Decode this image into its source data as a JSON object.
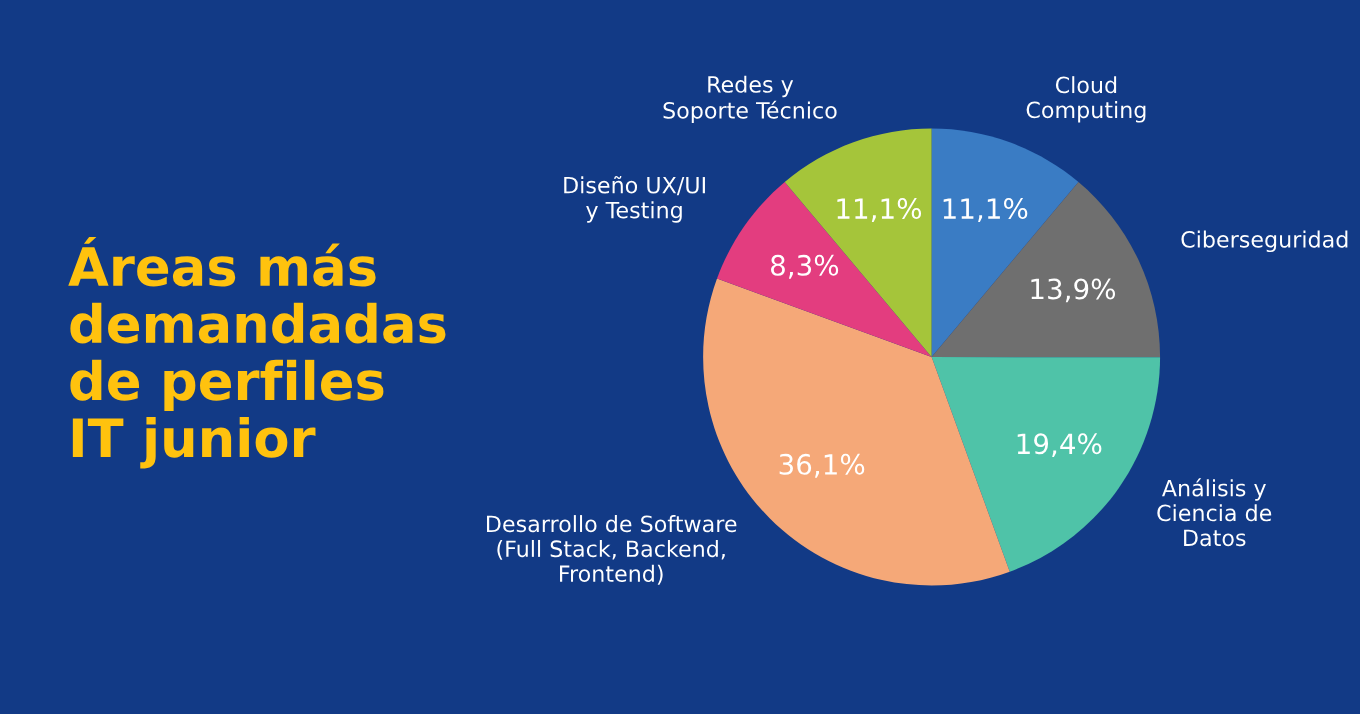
{
  "chart_data": {
    "type": "pie",
    "title": "Áreas más\ndemandadas\nde perfiles\nIT junior",
    "categories": [
      "Cloud\nComputing",
      "Ciberseguridad",
      "Análisis y\nCiencia de\nDatos",
      "Desarrollo de Software\n(Full Stack, Backend,\nFrontend)",
      "Diseño UX/UI\ny Testing",
      "Redes y\nSoporte Técnico"
    ],
    "values": [
      11.1,
      13.9,
      19.4,
      36.1,
      8.3,
      11.1
    ],
    "value_labels": [
      "11,1%",
      "13,9%",
      "19,4%",
      "36,1%",
      "8,3%",
      "11,1%"
    ],
    "colors": [
      "#3a7cc4",
      "#6f6f6f",
      "#4fc3a8",
      "#f5a878",
      "#e33d7f",
      "#a5c53a"
    ],
    "legend": false
  }
}
